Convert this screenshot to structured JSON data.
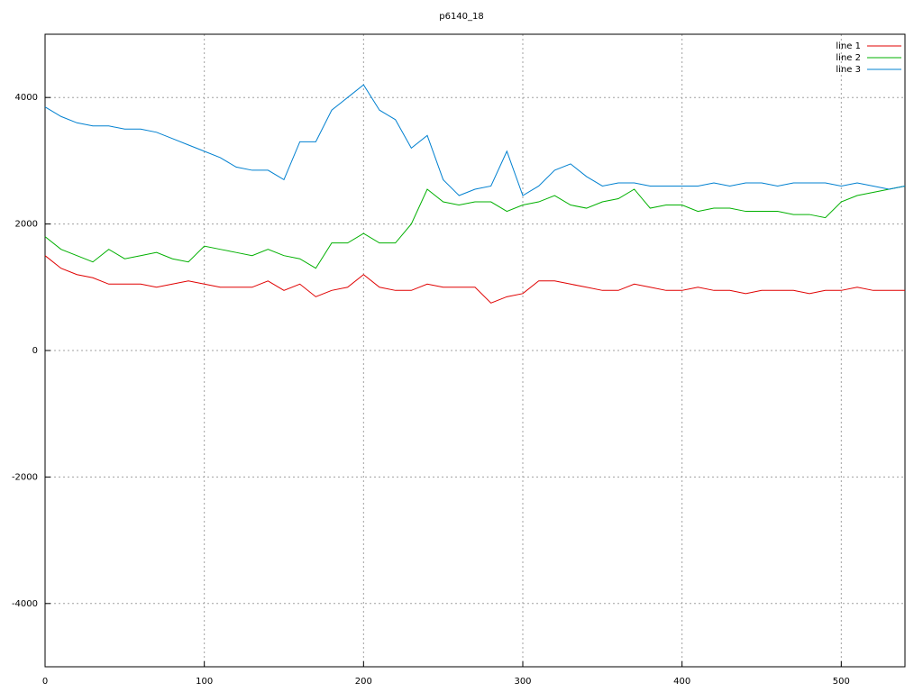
{
  "chart_data": {
    "type": "line",
    "title": "p6140_18",
    "x": [
      0,
      10,
      20,
      30,
      40,
      50,
      60,
      70,
      80,
      90,
      100,
      110,
      120,
      130,
      140,
      150,
      160,
      170,
      180,
      190,
      200,
      210,
      220,
      230,
      240,
      250,
      260,
      270,
      280,
      290,
      300,
      310,
      320,
      330,
      340,
      350,
      360,
      370,
      380,
      390,
      400,
      410,
      420,
      430,
      440,
      450,
      460,
      470,
      480,
      490,
      500,
      510,
      520,
      530,
      540
    ],
    "series": [
      {
        "name": "line 1",
        "color": "#e00000",
        "values": [
          1500,
          1300,
          1200,
          1150,
          1050,
          1050,
          1050,
          1000,
          1050,
          1100,
          1050,
          1000,
          1000,
          1000,
          1100,
          950,
          1050,
          850,
          950,
          1000,
          1200,
          1000,
          950,
          950,
          1050,
          1000,
          1000,
          1000,
          750,
          850,
          900,
          1100,
          1100,
          1050,
          1000,
          950,
          950,
          1050,
          1000,
          950,
          950,
          1000,
          950,
          950,
          900,
          950,
          950,
          950,
          900,
          950,
          950,
          1000,
          950,
          950,
          950
        ]
      },
      {
        "name": "line 2",
        "color": "#00b000",
        "values": [
          1800,
          1600,
          1500,
          1400,
          1600,
          1450,
          1500,
          1550,
          1450,
          1400,
          1650,
          1600,
          1550,
          1500,
          1600,
          1500,
          1450,
          1300,
          1700,
          1700,
          1850,
          1700,
          1700,
          2000,
          2550,
          2350,
          2300,
          2350,
          2350,
          2200,
          2300,
          2350,
          2450,
          2300,
          2250,
          2350,
          2400,
          2550,
          2250,
          2300,
          2300,
          2200,
          2250,
          2250,
          2200,
          2200,
          2200,
          2150,
          2150,
          2100,
          2350,
          2450,
          2500,
          2550,
          2600
        ]
      },
      {
        "name": "line 3",
        "color": "#0080d0",
        "values": [
          3850,
          3700,
          3600,
          3550,
          3550,
          3500,
          3500,
          3450,
          3350,
          3250,
          3150,
          3050,
          2900,
          2850,
          2850,
          2700,
          3300,
          3300,
          3800,
          4000,
          4200,
          3800,
          3650,
          3200,
          3400,
          2700,
          2450,
          2550,
          2600,
          3150,
          2450,
          2600,
          2850,
          2950,
          2750,
          2600,
          2650,
          2650,
          2600,
          2600,
          2600,
          2600,
          2650,
          2600,
          2650,
          2650,
          2600,
          2650,
          2650,
          2650,
          2600,
          2650,
          2600,
          2550,
          2600
        ]
      }
    ],
    "xlim": [
      0,
      540
    ],
    "ylim": [
      -5000,
      5000
    ],
    "xticks": [
      0,
      100,
      200,
      300,
      400,
      500
    ],
    "yticks": [
      -4000,
      -2000,
      0,
      2000,
      4000
    ],
    "grid": true,
    "legend": "top-right"
  }
}
